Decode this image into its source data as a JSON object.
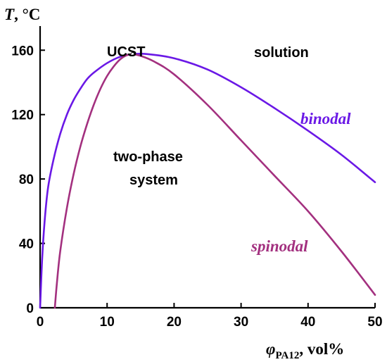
{
  "chart_data": {
    "type": "line",
    "ylabel_var": "T",
    "ylabel_unit": ", °C",
    "xlabel_var": "φ",
    "xlabel_sub": "PA12",
    "xlabel_unit": ", vol%",
    "xlim": [
      0,
      50
    ],
    "ylim": [
      0,
      175
    ],
    "x_ticks": [
      0,
      10,
      20,
      30,
      40,
      50
    ],
    "y_ticks": [
      0,
      40,
      80,
      120,
      160
    ],
    "grid": false,
    "colors": {
      "binodal": "#6a18e6",
      "spinodal": "#a3307f",
      "axis": "#000000"
    },
    "series": [
      {
        "name": "binodal",
        "x": [
          0,
          0.3,
          0.7,
          1.2,
          2,
          3,
          4,
          5,
          6,
          7,
          8,
          10,
          12,
          13.8,
          16,
          20,
          25,
          30,
          35,
          40,
          45,
          50
        ],
        "y": [
          0,
          30,
          55,
          75,
          92,
          108,
          120,
          129,
          136,
          142,
          146,
          152,
          156,
          157.5,
          157.6,
          155,
          148,
          137,
          124,
          110,
          95,
          78
        ]
      },
      {
        "name": "spinodal",
        "x": [
          2.2,
          2.5,
          3,
          4,
          5,
          6,
          7,
          8,
          9,
          10,
          11,
          12,
          13,
          13.8,
          15,
          17,
          20,
          25,
          30,
          35,
          40,
          45,
          50
        ],
        "y": [
          0,
          15,
          35,
          62,
          83,
          100,
          114,
          126,
          136,
          144,
          150,
          154.5,
          157,
          157.5,
          156.5,
          153,
          145,
          126,
          104,
          82,
          60,
          35,
          8
        ]
      }
    ],
    "annotations": {
      "ucst": {
        "label": "UCST",
        "x": 13.8,
        "y": 157.5
      },
      "solution": "solution",
      "two_phase_line1": "two-phase",
      "two_phase_line2": "system",
      "binodal": "binodal",
      "spinodal": "spinodal"
    }
  }
}
